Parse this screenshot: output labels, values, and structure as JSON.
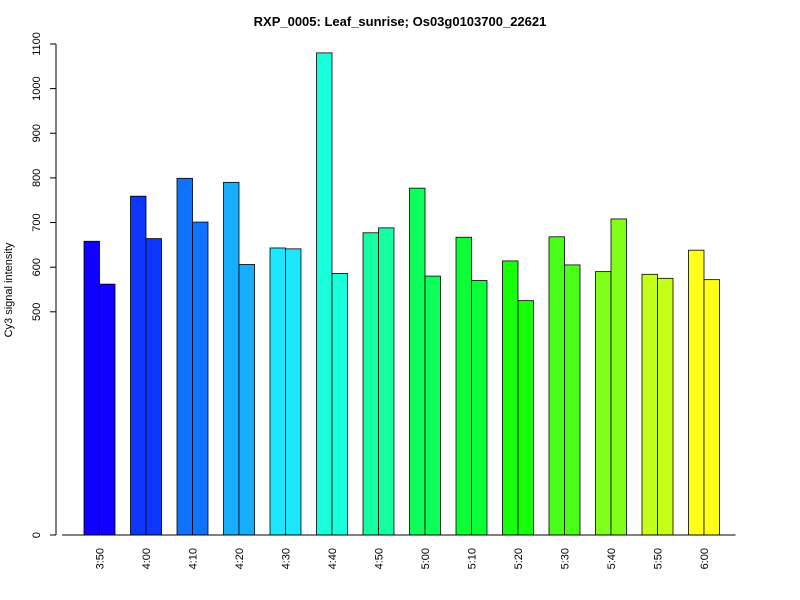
{
  "chart_data": {
    "type": "bar",
    "title": "RXP_0005: Leaf_sunrise; Os03g0103700_22621",
    "xlabel": "",
    "ylabel": "Cy3 signal intensity",
    "categories": [
      "3:50",
      "4:00",
      "4:10",
      "4:20",
      "4:30",
      "4:40",
      "4:50",
      "5:00",
      "5:10",
      "5:20",
      "5:30",
      "5:40",
      "5:50",
      "6:00"
    ],
    "colors": [
      "#1000ff",
      "#0d36ff",
      "#0f73ff",
      "#17aeff",
      "#1ee6ff",
      "#1affdb",
      "#14ffa0",
      "#0dff5a",
      "#0cff36",
      "#17ff0d",
      "#4aff17",
      "#80ff1a",
      "#c4ff1a",
      "#ffff17"
    ],
    "series": [
      {
        "values": [
          658,
          759,
          799,
          790,
          643,
          1080,
          677,
          777,
          667,
          614,
          668,
          590,
          584,
          638
        ]
      },
      {
        "values": [
          562,
          664,
          701,
          606,
          641,
          586,
          688,
          580,
          570,
          525,
          605,
          708,
          575,
          572
        ]
      }
    ],
    "yticks": [
      "0",
      "500",
      "600",
      "700",
      "800",
      "900",
      "1000",
      "1100"
    ],
    "ytick_values": [
      0,
      500,
      600,
      700,
      800,
      900,
      1000,
      1100
    ],
    "ylim": [
      0,
      1100
    ],
    "grid": false,
    "legend": "none"
  }
}
